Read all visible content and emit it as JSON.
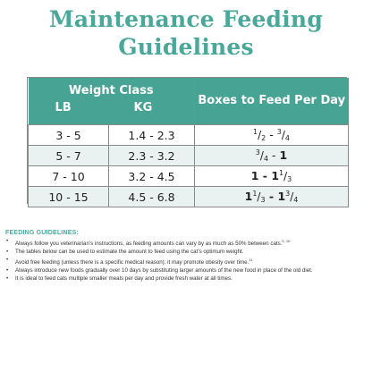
{
  "title": {
    "line1": "Maintenance Feeding",
    "line2": "Guidelines"
  },
  "table": {
    "header_weight_class": "Weight Class",
    "header_lb": "LB",
    "header_kg": "KG",
    "header_boxes": "Boxes to Feed Per Day",
    "rows": [
      {
        "lb": "3 - 5",
        "kg": "1.4 - 2.3"
      },
      {
        "lb": "5 - 7",
        "kg": "2.3 - 3.2"
      },
      {
        "lb": "7 - 10",
        "kg": "3.2 - 4.5"
      },
      {
        "lb": "10 - 15",
        "kg": "4.5 - 6.8"
      }
    ],
    "amounts": {
      "r1": {
        "a_num": "1",
        "a_den": "2",
        "sep": " - ",
        "b_num": "3",
        "b_den": "4"
      },
      "r2": {
        "a_num": "3",
        "a_den": "4",
        "sep": " - ",
        "whole": "1"
      },
      "r3": {
        "whole": "1",
        "sep": " - ",
        "b_whole": "1",
        "b_num": "1",
        "b_den": "3"
      },
      "r4": {
        "a_whole": "1",
        "a_num": "1",
        "a_den": "3",
        "sep": " - ",
        "b_whole": "1",
        "b_num": "3",
        "b_den": "4"
      }
    },
    "slash": "/"
  },
  "guidelines": {
    "heading": "FEEDING GUIDELINES:",
    "items": [
      {
        "text": "Always follow you veterinarian’s instructions, as feeding amounts can vary by as much as 50% between cats.",
        "ref": "9, 10"
      },
      {
        "text": "The tables below can be used to estimate the amount to feed using the cat’s optimum weight.",
        "ref": ""
      },
      {
        "text": "Avoid free feeding (unless there is a specific medical reason); it may promote obesity over time.",
        "ref": "11"
      },
      {
        "text": "Always introduce new foods gradually over 10 days by substituting larger amounts of the new food in place of the old diet.",
        "ref": ""
      },
      {
        "text": "It is ideal to feed cats multiple smaller meals per day and provide fresh water at all times.",
        "ref": ""
      }
    ]
  }
}
